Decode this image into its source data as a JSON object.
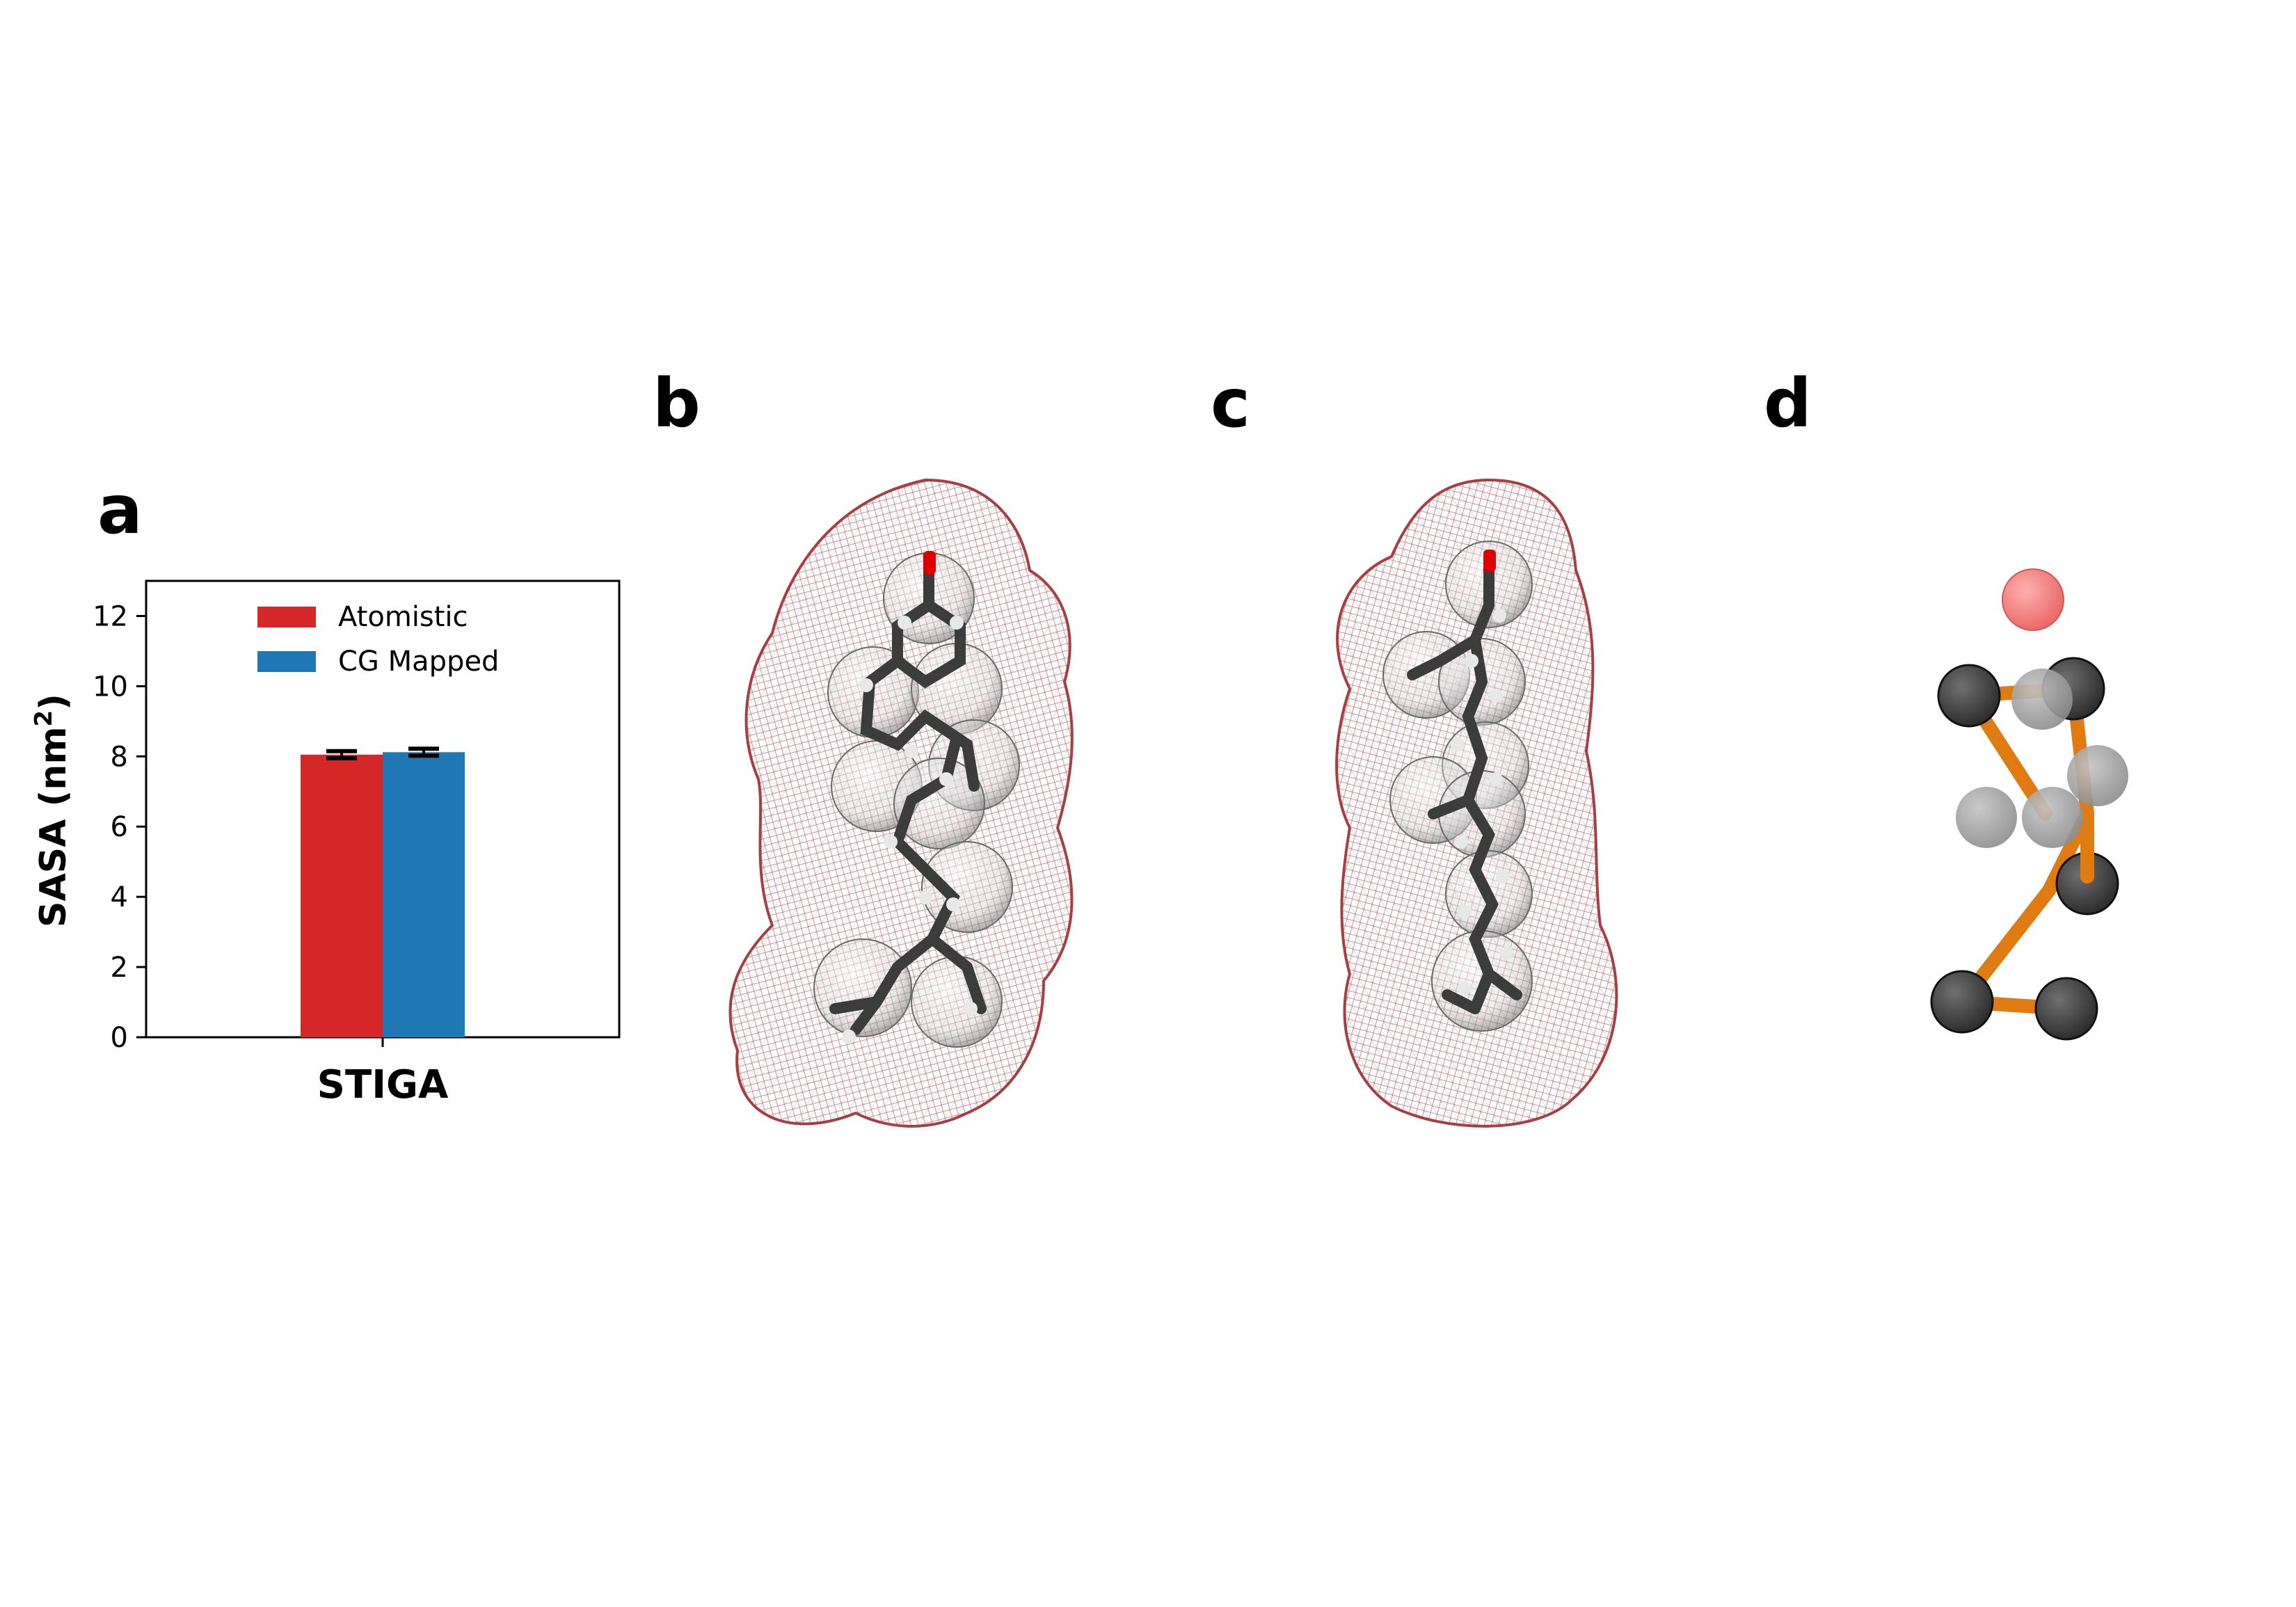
{
  "panels": {
    "a": "a",
    "b": "b",
    "c": "c",
    "d": "d"
  },
  "chart_data": {
    "type": "bar",
    "categories": [
      "STIGA"
    ],
    "series": [
      {
        "name": "Atomistic",
        "values": [
          8.05
        ],
        "error": [
          0.1
        ],
        "color": "#d62728"
      },
      {
        "name": "CG Mapped",
        "values": [
          8.12
        ],
        "error": [
          0.1
        ],
        "color": "#1f77b4"
      }
    ],
    "ylabel": "SASA (nm",
    "ylabel_sup": "2",
    "ylabel_close": ")",
    "ylim": [
      0,
      13
    ],
    "yticks": [
      "0",
      "2",
      "4",
      "6",
      "8",
      "10",
      "12"
    ],
    "legend_position": "top-center",
    "grid": false
  },
  "colors": {
    "mesh_red": "#a0353a",
    "mesh_blue": "#3d8aa5",
    "carbon": "#3c3c3c",
    "hydrogen": "#e8e8e8",
    "oxygen": "#dd0000",
    "bond_orange": "#e07b12",
    "bead_dark": "#444444",
    "bead_light": "#a9a9a9",
    "bead_red": "#f08080"
  }
}
